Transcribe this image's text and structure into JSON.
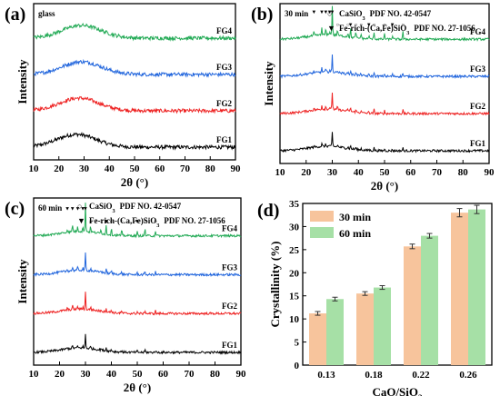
{
  "chart_data": [
    {
      "panel": "(a)",
      "type": "line",
      "note": "glass",
      "xlabel": "2θ (°)",
      "ylabel": "Intensity",
      "xlim": [
        10,
        90
      ],
      "x_ticks": [
        10,
        20,
        30,
        40,
        50,
        60,
        70,
        80,
        90
      ],
      "series": [
        {
          "name": "FG1",
          "color": "#000000",
          "amorphous_hump_center": 27
        },
        {
          "name": "FG2",
          "color": "#ee2222",
          "amorphous_hump_center": 28
        },
        {
          "name": "FG3",
          "color": "#2266dd",
          "amorphous_hump_center": 29
        },
        {
          "name": "FG4",
          "color": "#22aa55",
          "amorphous_hump_center": 29
        }
      ]
    },
    {
      "panel": "(b)",
      "type": "line",
      "note": "30 min",
      "xlabel": "2θ (°)",
      "ylabel": "Intensity",
      "xlim": [
        10,
        90
      ],
      "x_ticks": [
        10,
        20,
        30,
        40,
        50,
        60,
        70,
        80,
        90
      ],
      "phase_legend": [
        {
          "marker": "○",
          "phase": "CaSiO",
          "sub": "3",
          "pdf": "PDF NO. 42-0547"
        },
        {
          "marker": "▼",
          "phase": "Fe-rich-(Ca,Fe)SiO",
          "sub": "3",
          "pdf": "PDF NO. 27-1056"
        }
      ],
      "series": [
        {
          "name": "FG1",
          "color": "#000000"
        },
        {
          "name": "FG2",
          "color": "#ee2222"
        },
        {
          "name": "FG3",
          "color": "#2266dd"
        },
        {
          "name": "FG4",
          "color": "#22aa55"
        }
      ],
      "peaks": [
        23,
        26,
        27.5,
        29,
        30,
        32,
        36,
        37,
        39,
        41,
        44,
        46,
        50,
        53,
        57
      ]
    },
    {
      "panel": "(c)",
      "type": "line",
      "note": "60 min",
      "xlabel": "2θ (°)",
      "ylabel": "Intensity",
      "xlim": [
        10,
        90
      ],
      "x_ticks": [
        10,
        20,
        30,
        40,
        50,
        60,
        70,
        80,
        90
      ],
      "phase_legend": [
        {
          "marker": "○",
          "phase": "CaSiO",
          "sub": "3",
          "pdf": "PDF NO. 42-0547"
        },
        {
          "marker": "▼",
          "phase": "Fe-rich-(Ca,Fe)SiO",
          "sub": "3",
          "pdf": "PDF NO. 27-1056"
        }
      ],
      "series": [
        {
          "name": "FG1",
          "color": "#000000"
        },
        {
          "name": "FG2",
          "color": "#ee2222"
        },
        {
          "name": "FG3",
          "color": "#2266dd"
        },
        {
          "name": "FG4",
          "color": "#22aa55"
        }
      ],
      "peaks": [
        23,
        25,
        27,
        29,
        30,
        32,
        36,
        38,
        40,
        44,
        50,
        53,
        57
      ]
    },
    {
      "panel": "(d)",
      "type": "bar",
      "xlabel": "CaO/SiO",
      "xlabel_sub": "2",
      "ylabel": "Crystallinity (%)",
      "ylim": [
        0,
        35
      ],
      "y_ticks": [
        0,
        5,
        10,
        15,
        20,
        25,
        30,
        35
      ],
      "categories": [
        "0.13",
        "0.18",
        "0.22",
        "0.26"
      ],
      "series": [
        {
          "name": "30 min",
          "color": "#f7c49c",
          "values": [
            11.2,
            15.5,
            25.7,
            33.0
          ],
          "errors": [
            0.4,
            0.4,
            0.5,
            0.9
          ]
        },
        {
          "name": "60 min",
          "color": "#a6e0a6",
          "values": [
            14.3,
            16.8,
            28.0,
            33.7
          ],
          "errors": [
            0.4,
            0.4,
            0.5,
            0.9
          ]
        }
      ]
    }
  ]
}
